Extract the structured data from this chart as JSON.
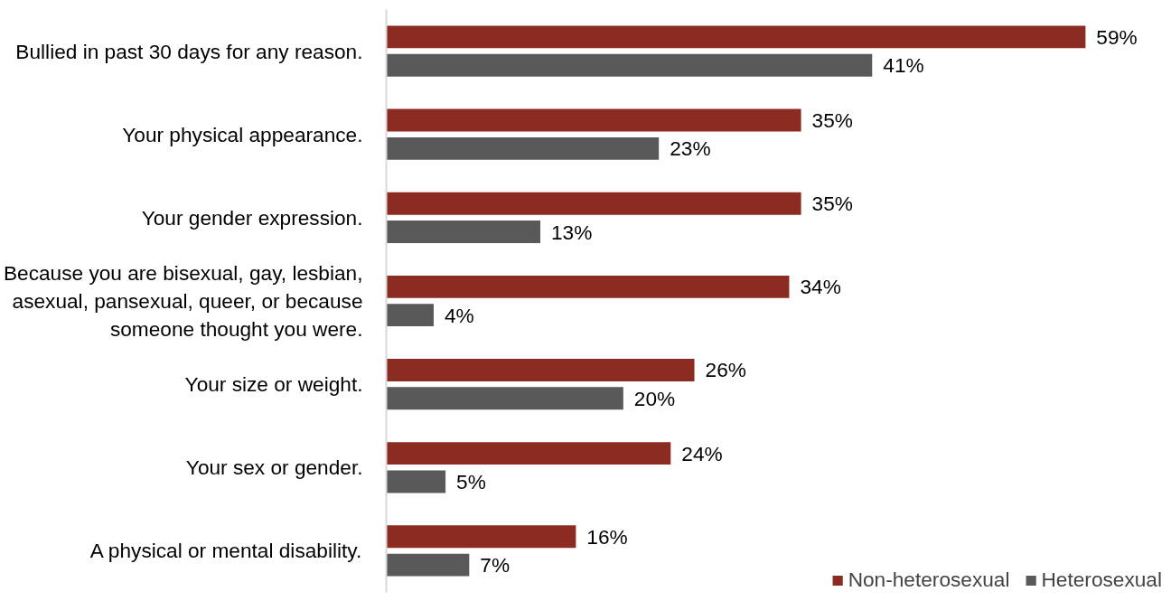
{
  "chart_data": {
    "type": "bar",
    "orientation": "horizontal",
    "categories": [
      "Bullied in past 30 days for any reason.",
      "Your physical appearance.",
      "Your gender expression.",
      "Because you are bisexual, gay, lesbian, asexual, pansexual, queer, or because someone thought you were.",
      "Your size or weight.",
      "Your sex or gender.",
      "A physical or mental disability."
    ],
    "series": [
      {
        "name": "Non-heterosexual",
        "color": "#8b2b22",
        "values": [
          59,
          35,
          35,
          34,
          26,
          24,
          16
        ],
        "value_labels": [
          "59%",
          "35%",
          "35%",
          "34%",
          "26%",
          "24%",
          "16%"
        ]
      },
      {
        "name": "Heterosexual",
        "color": "#595959",
        "values": [
          41,
          23,
          13,
          4,
          20,
          5,
          7
        ],
        "value_labels": [
          "41%",
          "23%",
          "13%",
          "4%",
          "20%",
          "5%",
          "7%"
        ]
      }
    ],
    "legend": "bottom right",
    "grid": false,
    "tick_labels": "y"
  }
}
